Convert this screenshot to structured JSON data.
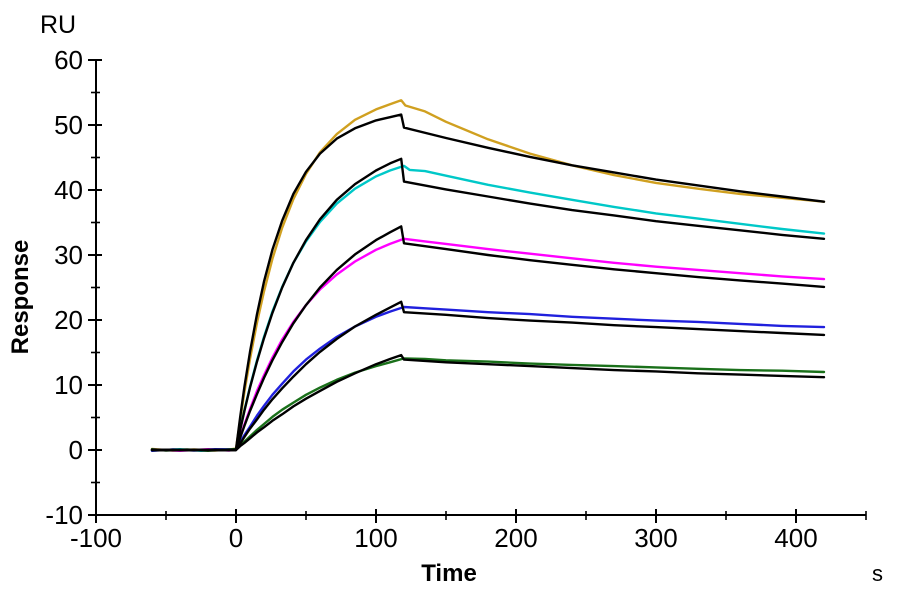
{
  "chart_data": {
    "type": "line",
    "title": "",
    "ylabel": "Response",
    "xlabel": "Time",
    "y_unit_label": "RU",
    "x_unit_label": "s",
    "grid": false,
    "legend": "none",
    "axis_color": "#000000",
    "background_color": "#ffffff",
    "x_axis": {
      "min": -100,
      "max": 450,
      "major_ticks": [
        -100,
        0,
        100,
        200,
        300,
        400
      ],
      "tick_labels": [
        "-100",
        "0",
        "100",
        "200",
        "300",
        "400"
      ],
      "minor_ticks": [
        -50,
        50,
        150,
        250,
        350,
        450
      ]
    },
    "y_axis": {
      "min": -10,
      "max": 60,
      "major_ticks": [
        -10,
        0,
        10,
        20,
        30,
        40,
        50,
        60
      ],
      "tick_labels": [
        "-10",
        "0",
        "10",
        "20",
        "30",
        "40",
        "50",
        "60"
      ],
      "minor_ticks": [
        -5,
        5,
        15,
        25,
        35,
        45,
        55
      ]
    },
    "phases": {
      "baseline_start_s": -60,
      "injection_start_s": 0,
      "injection_stop_s": 120,
      "end_s": 420
    },
    "series": [
      {
        "name": "gold-data",
        "role": "measured",
        "color": "#D0A020",
        "points": [
          [
            -60,
            0.15
          ],
          [
            -45,
            -0.1
          ],
          [
            -30,
            0.1
          ],
          [
            -15,
            -0.1
          ],
          [
            -5,
            0.1
          ],
          [
            0,
            0.2
          ],
          [
            3,
            4.6
          ],
          [
            6,
            8.9
          ],
          [
            10,
            14
          ],
          [
            15,
            19.6
          ],
          [
            20,
            24.4
          ],
          [
            26,
            29.4
          ],
          [
            33,
            34.2
          ],
          [
            41,
            38.6
          ],
          [
            50,
            42.5
          ],
          [
            60,
            45.8
          ],
          [
            72,
            48.6
          ],
          [
            85,
            50.8
          ],
          [
            100,
            52.4
          ],
          [
            110,
            53.2
          ],
          [
            118,
            53.8
          ],
          [
            121,
            53
          ],
          [
            135,
            52.1
          ],
          [
            150,
            50.5
          ],
          [
            180,
            47.8
          ],
          [
            210,
            45.6
          ],
          [
            240,
            43.8
          ],
          [
            270,
            42.3
          ],
          [
            300,
            41.1
          ],
          [
            330,
            40.2
          ],
          [
            360,
            39.4
          ],
          [
            390,
            38.8
          ],
          [
            420,
            38.2
          ]
        ]
      },
      {
        "name": "cyan-data",
        "role": "measured",
        "color": "#00C8C8",
        "points": [
          [
            -60,
            -0.1
          ],
          [
            -40,
            0.12
          ],
          [
            -25,
            -0.12
          ],
          [
            -10,
            0.1
          ],
          [
            0,
            0.1
          ],
          [
            3,
            3.2
          ],
          [
            6,
            6.1
          ],
          [
            10,
            9.7
          ],
          [
            15,
            13.8
          ],
          [
            20,
            17.4
          ],
          [
            26,
            21.3
          ],
          [
            33,
            25.1
          ],
          [
            41,
            28.8
          ],
          [
            50,
            32.1
          ],
          [
            60,
            35.1
          ],
          [
            72,
            37.9
          ],
          [
            85,
            40.2
          ],
          [
            100,
            42.1
          ],
          [
            110,
            43
          ],
          [
            120,
            43.7
          ],
          [
            124,
            43.1
          ],
          [
            135,
            42.9
          ],
          [
            150,
            42.2
          ],
          [
            180,
            40.8
          ],
          [
            210,
            39.6
          ],
          [
            240,
            38.5
          ],
          [
            270,
            37.4
          ],
          [
            300,
            36.4
          ],
          [
            330,
            35.6
          ],
          [
            360,
            34.8
          ],
          [
            390,
            34
          ],
          [
            420,
            33.3
          ]
        ]
      },
      {
        "name": "magenta-data",
        "role": "measured",
        "color": "#FF00FF",
        "points": [
          [
            -60,
            0.1
          ],
          [
            -40,
            -0.12
          ],
          [
            -20,
            0.12
          ],
          [
            -5,
            -0.1
          ],
          [
            0,
            0.1
          ],
          [
            3,
            2
          ],
          [
            6,
            3.9
          ],
          [
            10,
            6.3
          ],
          [
            15,
            9.1
          ],
          [
            20,
            11.5
          ],
          [
            26,
            14.2
          ],
          [
            33,
            17
          ],
          [
            41,
            19.7
          ],
          [
            50,
            22.3
          ],
          [
            60,
            24.7
          ],
          [
            72,
            27
          ],
          [
            85,
            29
          ],
          [
            100,
            30.8
          ],
          [
            110,
            31.7
          ],
          [
            120,
            32.5
          ],
          [
            135,
            32.1
          ],
          [
            150,
            31.7
          ],
          [
            180,
            30.9
          ],
          [
            210,
            30.2
          ],
          [
            240,
            29.5
          ],
          [
            270,
            28.8
          ],
          [
            300,
            28.2
          ],
          [
            330,
            27.7
          ],
          [
            360,
            27.2
          ],
          [
            390,
            26.7
          ],
          [
            420,
            26.3
          ]
        ]
      },
      {
        "name": "blue-data",
        "role": "measured",
        "color": "#2020DD",
        "points": [
          [
            -60,
            -0.12
          ],
          [
            -45,
            0.1
          ],
          [
            -30,
            -0.1
          ],
          [
            -15,
            0.12
          ],
          [
            0,
            0.1
          ],
          [
            3,
            1.2
          ],
          [
            6,
            2.3
          ],
          [
            10,
            3.6
          ],
          [
            15,
            5.3
          ],
          [
            20,
            6.8
          ],
          [
            26,
            8.5
          ],
          [
            33,
            10.2
          ],
          [
            41,
            12.1
          ],
          [
            50,
            13.9
          ],
          [
            60,
            15.6
          ],
          [
            72,
            17.4
          ],
          [
            85,
            19
          ],
          [
            100,
            20.5
          ],
          [
            110,
            21.3
          ],
          [
            120,
            22
          ],
          [
            135,
            21.8
          ],
          [
            150,
            21.6
          ],
          [
            180,
            21.2
          ],
          [
            210,
            20.9
          ],
          [
            240,
            20.5
          ],
          [
            270,
            20.2
          ],
          [
            300,
            19.9
          ],
          [
            330,
            19.7
          ],
          [
            360,
            19.4
          ],
          [
            390,
            19.1
          ],
          [
            420,
            18.9
          ]
        ]
      },
      {
        "name": "green-data",
        "role": "measured",
        "color": "#1A701A",
        "points": [
          [
            -60,
            0.12
          ],
          [
            -50,
            -0.1
          ],
          [
            -35,
            0.1
          ],
          [
            -20,
            -0.12
          ],
          [
            -5,
            0.1
          ],
          [
            0,
            0.15
          ],
          [
            3,
            0.7
          ],
          [
            6,
            1.3
          ],
          [
            10,
            2.1
          ],
          [
            15,
            3.1
          ],
          [
            20,
            4
          ],
          [
            26,
            5.1
          ],
          [
            33,
            6.2
          ],
          [
            41,
            7.3
          ],
          [
            50,
            8.5
          ],
          [
            60,
            9.6
          ],
          [
            72,
            10.8
          ],
          [
            85,
            11.9
          ],
          [
            100,
            12.9
          ],
          [
            110,
            13.5
          ],
          [
            120,
            14.1
          ],
          [
            135,
            14
          ],
          [
            150,
            13.8
          ],
          [
            180,
            13.6
          ],
          [
            210,
            13.3
          ],
          [
            240,
            13.1
          ],
          [
            270,
            12.9
          ],
          [
            300,
            12.7
          ],
          [
            330,
            12.5
          ],
          [
            360,
            12.3
          ],
          [
            390,
            12.2
          ],
          [
            420,
            12
          ]
        ]
      },
      {
        "name": "gold-fit",
        "role": "fit",
        "color": "#000000",
        "points": [
          [
            -60,
            0
          ],
          [
            -5,
            0
          ],
          [
            0,
            0.1
          ],
          [
            3,
            5.1
          ],
          [
            6,
            9.7
          ],
          [
            10,
            15.1
          ],
          [
            15,
            20.9
          ],
          [
            20,
            25.9
          ],
          [
            26,
            30.8
          ],
          [
            33,
            35.3
          ],
          [
            41,
            39.4
          ],
          [
            50,
            42.8
          ],
          [
            60,
            45.6
          ],
          [
            72,
            47.9
          ],
          [
            85,
            49.5
          ],
          [
            100,
            50.7
          ],
          [
            110,
            51.2
          ],
          [
            118,
            51.6
          ],
          [
            120,
            49.6
          ],
          [
            150,
            48
          ],
          [
            180,
            46.5
          ],
          [
            210,
            45.1
          ],
          [
            240,
            43.8
          ],
          [
            270,
            42.7
          ],
          [
            300,
            41.6
          ],
          [
            330,
            40.7
          ],
          [
            360,
            39.8
          ],
          [
            390,
            39
          ],
          [
            420,
            38.2
          ]
        ]
      },
      {
        "name": "cyan-fit",
        "role": "fit",
        "color": "#000000",
        "points": [
          [
            -60,
            0
          ],
          [
            0,
            0
          ],
          [
            3,
            3.1
          ],
          [
            6,
            6
          ],
          [
            10,
            9.6
          ],
          [
            15,
            13.6
          ],
          [
            20,
            17.2
          ],
          [
            26,
            21.1
          ],
          [
            33,
            25
          ],
          [
            41,
            28.8
          ],
          [
            50,
            32.3
          ],
          [
            60,
            35.5
          ],
          [
            72,
            38.5
          ],
          [
            85,
            40.9
          ],
          [
            100,
            43
          ],
          [
            110,
            44.1
          ],
          [
            118,
            44.8
          ],
          [
            120,
            41.3
          ],
          [
            150,
            40.1
          ],
          [
            180,
            39
          ],
          [
            210,
            37.9
          ],
          [
            240,
            36.9
          ],
          [
            270,
            36.1
          ],
          [
            300,
            35.2
          ],
          [
            330,
            34.5
          ],
          [
            360,
            33.8
          ],
          [
            390,
            33.1
          ],
          [
            420,
            32.5
          ]
        ]
      },
      {
        "name": "magenta-fit",
        "role": "fit",
        "color": "#000000",
        "points": [
          [
            -60,
            0
          ],
          [
            0,
            0
          ],
          [
            3,
            1.9
          ],
          [
            6,
            3.7
          ],
          [
            10,
            6
          ],
          [
            15,
            8.6
          ],
          [
            20,
            11.1
          ],
          [
            26,
            13.8
          ],
          [
            33,
            16.6
          ],
          [
            41,
            19.5
          ],
          [
            50,
            22.3
          ],
          [
            60,
            25
          ],
          [
            72,
            27.7
          ],
          [
            85,
            30.1
          ],
          [
            100,
            32.3
          ],
          [
            110,
            33.5
          ],
          [
            118,
            34.4
          ],
          [
            120,
            31.8
          ],
          [
            150,
            30.9
          ],
          [
            180,
            30
          ],
          [
            210,
            29.2
          ],
          [
            240,
            28.5
          ],
          [
            270,
            27.8
          ],
          [
            300,
            27.2
          ],
          [
            330,
            26.6
          ],
          [
            360,
            26.1
          ],
          [
            390,
            25.6
          ],
          [
            420,
            25.1
          ]
        ]
      },
      {
        "name": "blue-fit",
        "role": "fit",
        "color": "#000000",
        "points": [
          [
            -60,
            0
          ],
          [
            0,
            0
          ],
          [
            3,
            1
          ],
          [
            6,
            2
          ],
          [
            10,
            3.3
          ],
          [
            15,
            4.7
          ],
          [
            20,
            6.2
          ],
          [
            26,
            7.8
          ],
          [
            33,
            9.5
          ],
          [
            41,
            11.3
          ],
          [
            50,
            13.2
          ],
          [
            60,
            15.1
          ],
          [
            72,
            17.1
          ],
          [
            85,
            19
          ],
          [
            100,
            20.8
          ],
          [
            110,
            21.9
          ],
          [
            118,
            22.8
          ],
          [
            120,
            21.2
          ],
          [
            150,
            20.8
          ],
          [
            180,
            20.3
          ],
          [
            210,
            19.9
          ],
          [
            240,
            19.6
          ],
          [
            270,
            19.2
          ],
          [
            300,
            18.9
          ],
          [
            330,
            18.6
          ],
          [
            360,
            18.3
          ],
          [
            390,
            18
          ],
          [
            420,
            17.7
          ]
        ]
      },
      {
        "name": "green-fit",
        "role": "fit",
        "color": "#000000",
        "points": [
          [
            -60,
            0
          ],
          [
            0,
            0
          ],
          [
            3,
            0.6
          ],
          [
            6,
            1.1
          ],
          [
            10,
            1.8
          ],
          [
            15,
            2.7
          ],
          [
            20,
            3.5
          ],
          [
            26,
            4.5
          ],
          [
            33,
            5.5
          ],
          [
            41,
            6.7
          ],
          [
            50,
            7.9
          ],
          [
            60,
            9.1
          ],
          [
            72,
            10.5
          ],
          [
            85,
            11.8
          ],
          [
            100,
            13.2
          ],
          [
            110,
            14
          ],
          [
            118,
            14.6
          ],
          [
            120,
            13.9
          ],
          [
            150,
            13.5
          ],
          [
            180,
            13.2
          ],
          [
            210,
            12.9
          ],
          [
            240,
            12.6
          ],
          [
            270,
            12.3
          ],
          [
            300,
            12.1
          ],
          [
            330,
            11.8
          ],
          [
            360,
            11.6
          ],
          [
            390,
            11.4
          ],
          [
            420,
            11.2
          ]
        ]
      }
    ]
  }
}
